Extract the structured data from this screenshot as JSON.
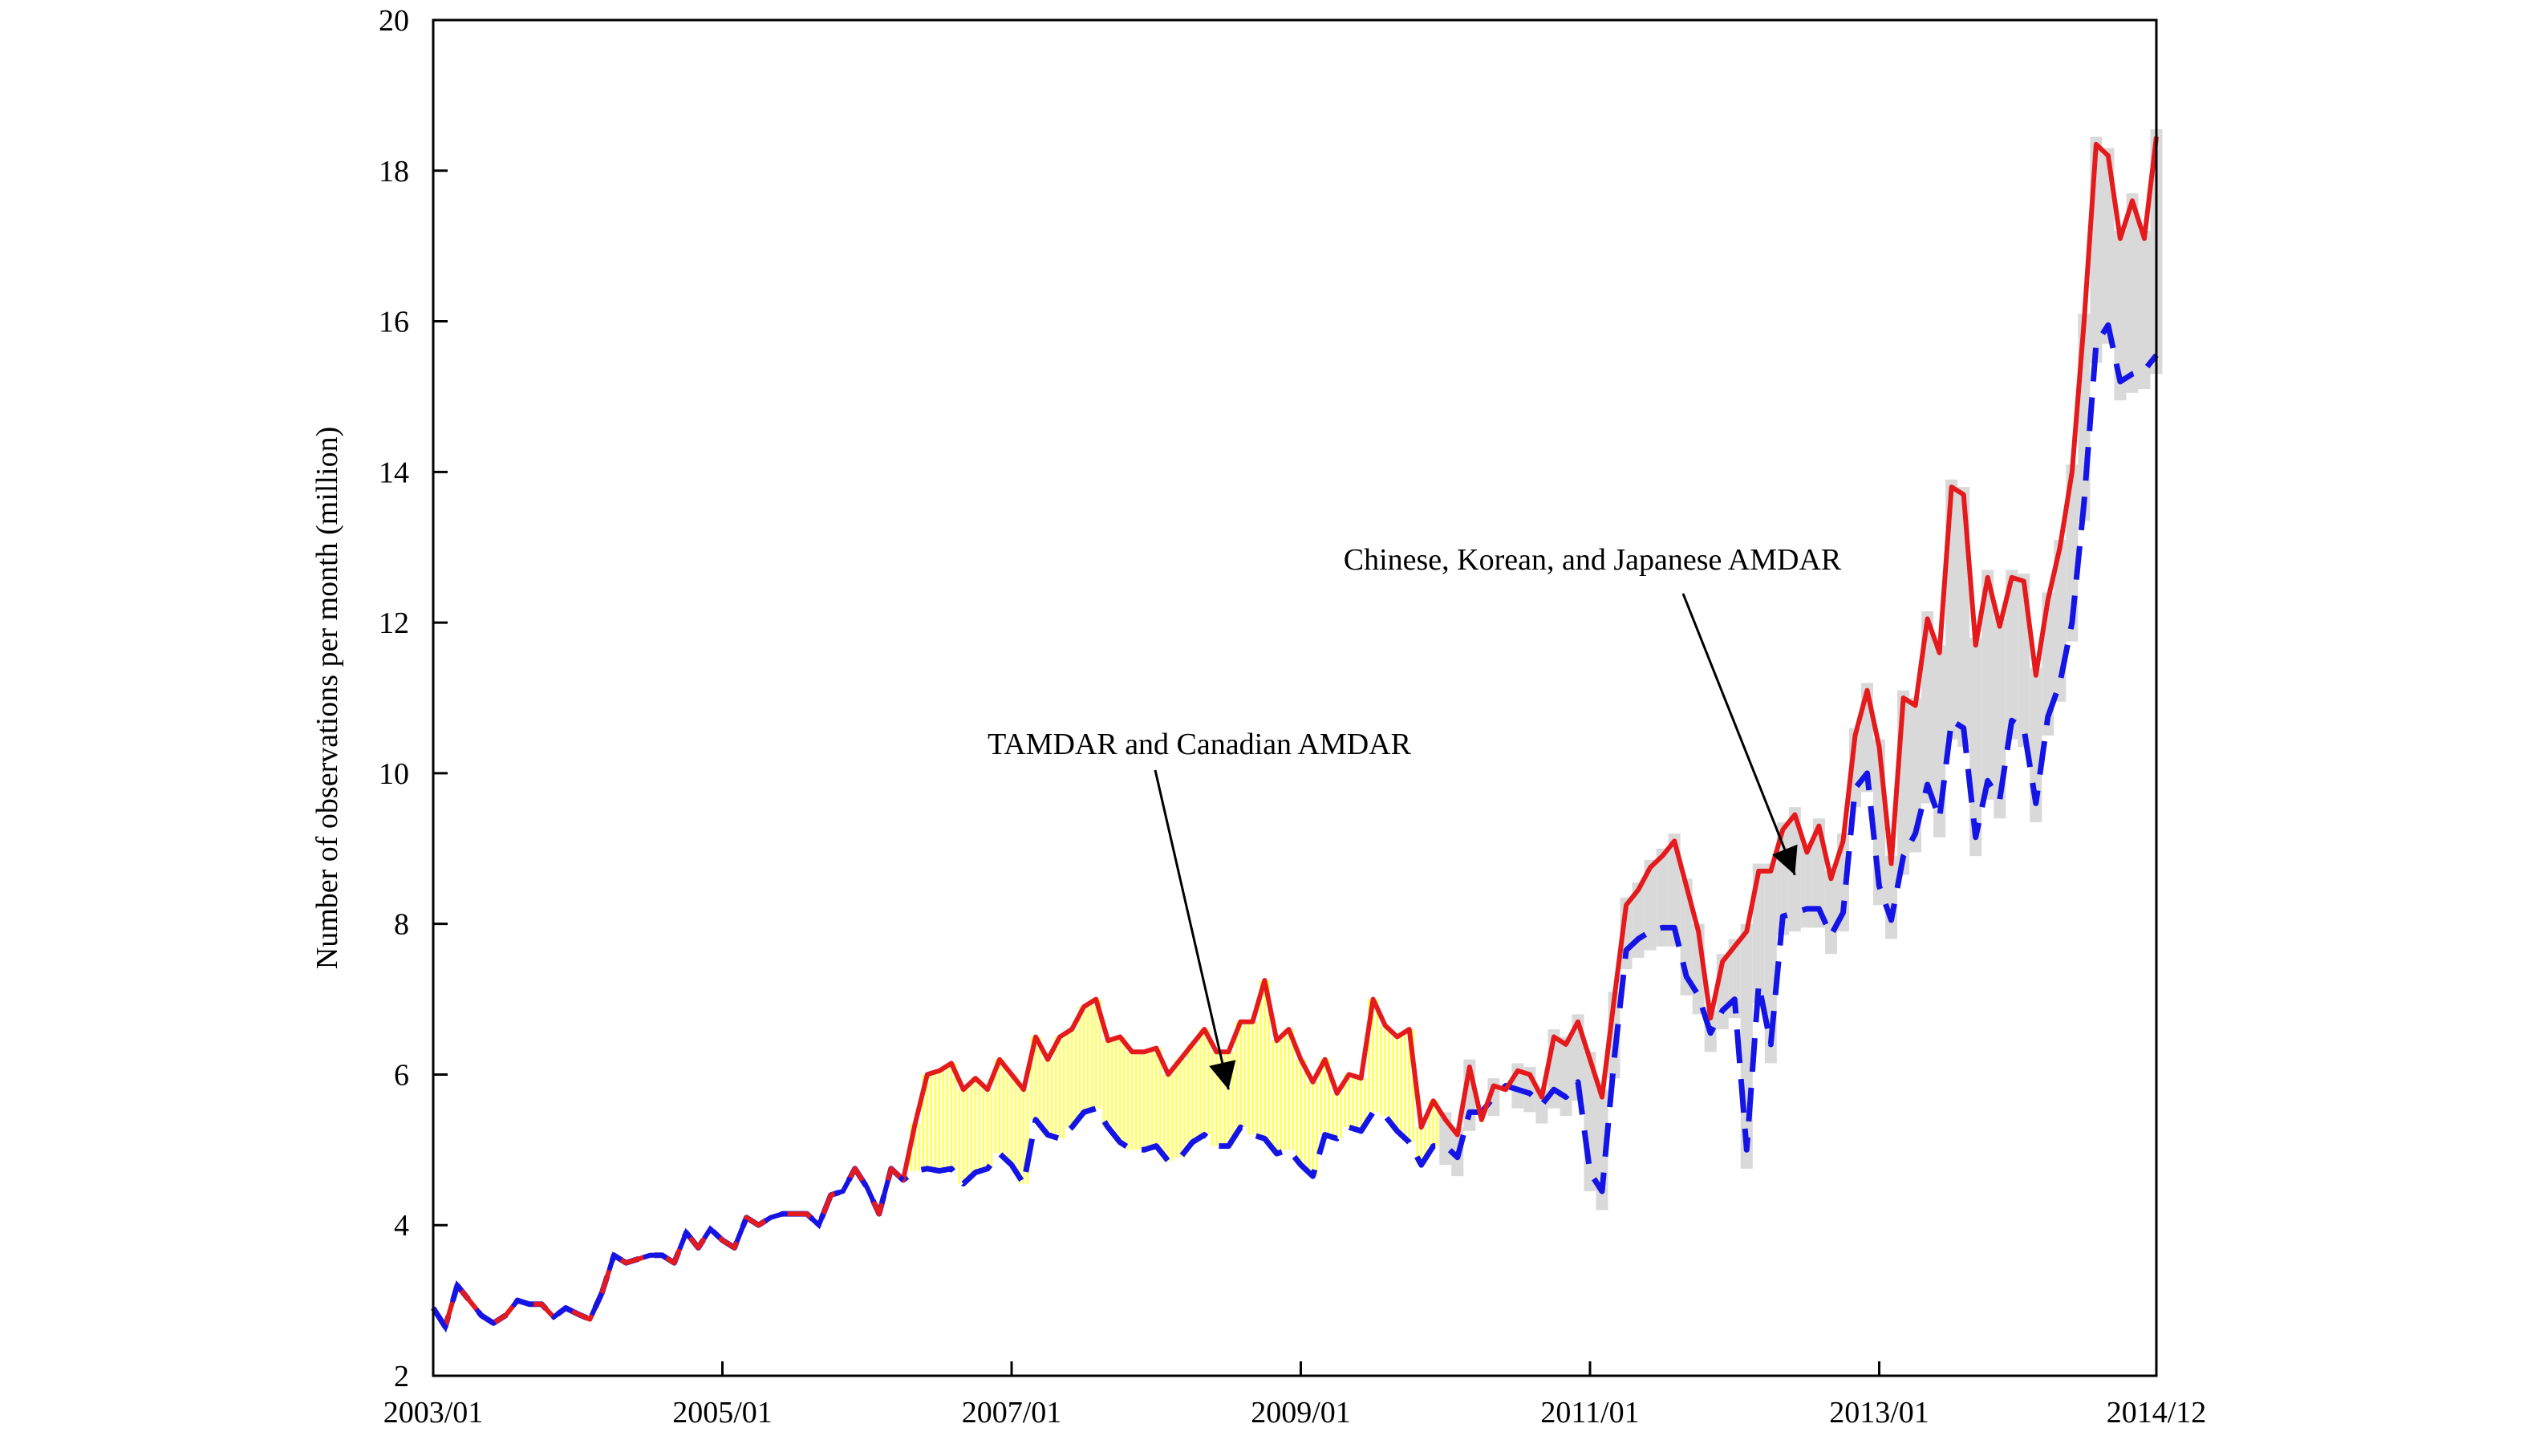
{
  "chart_data": {
    "type": "line",
    "title": "",
    "xlabel": "",
    "ylabel": "Number of observations per month (million)",
    "xlim": [
      "2003/01",
      "2014/12"
    ],
    "ylim": [
      2,
      20
    ],
    "x_ticks": [
      "2003/01",
      "2005/01",
      "2007/01",
      "2009/01",
      "2011/01",
      "2013/01",
      "2014/12"
    ],
    "y_ticks": [
      2,
      4,
      6,
      8,
      10,
      12,
      14,
      16,
      18,
      20
    ],
    "grid": false,
    "legend": "none",
    "colors": {
      "total": "#e41a1c",
      "without_new": "#1414e6",
      "tamdar_fill": "#ffff66",
      "asia_fill": "#d9d9d9"
    },
    "series": [
      {
        "points": [
          [
            "2003/01",
            2.9
          ],
          [
            "2003/02",
            2.65
          ],
          [
            "2003/03",
            3.2
          ],
          [
            "2003/04",
            3.0
          ],
          [
            "2003/05",
            2.8
          ],
          [
            "2003/06",
            2.7
          ],
          [
            "2003/07",
            2.8
          ],
          [
            "2003/08",
            3.0
          ],
          [
            "2003/09",
            2.95
          ],
          [
            "2003/10",
            2.95
          ],
          [
            "2003/11",
            2.78
          ],
          [
            "2003/12",
            2.9
          ],
          [
            "2004/01",
            2.82
          ],
          [
            "2004/02",
            2.75
          ],
          [
            "2004/03",
            3.1
          ],
          [
            "2004/04",
            3.6
          ],
          [
            "2004/05",
            3.5
          ],
          [
            "2004/06",
            3.55
          ],
          [
            "2004/07",
            3.6
          ],
          [
            "2004/08",
            3.6
          ],
          [
            "2004/09",
            3.5
          ],
          [
            "2004/10",
            3.9
          ],
          [
            "2004/11",
            3.7
          ],
          [
            "2004/12",
            3.95
          ],
          [
            "2005/01",
            3.8
          ],
          [
            "2005/02",
            3.7
          ],
          [
            "2005/03",
            4.1
          ],
          [
            "2005/04",
            4.0
          ],
          [
            "2005/05",
            4.1
          ],
          [
            "2005/06",
            4.15
          ],
          [
            "2005/07",
            4.15
          ],
          [
            "2005/08",
            4.15
          ],
          [
            "2005/09",
            4.0
          ],
          [
            "2005/10",
            4.4
          ],
          [
            "2005/11",
            4.45
          ],
          [
            "2005/12",
            4.75
          ],
          [
            "2006/01",
            4.5
          ],
          [
            "2006/02",
            4.15
          ],
          [
            "2006/03",
            4.75
          ],
          [
            "2006/04",
            4.6
          ],
          [
            "2006/05",
            5.35
          ],
          [
            "2006/06",
            6.0
          ],
          [
            "2006/07",
            6.05
          ],
          [
            "2006/08",
            6.15
          ],
          [
            "2006/09",
            5.8
          ],
          [
            "2006/10",
            5.95
          ],
          [
            "2006/11",
            5.8
          ],
          [
            "2006/12",
            6.2
          ],
          [
            "2007/01",
            6.0
          ],
          [
            "2007/02",
            5.8
          ],
          [
            "2007/03",
            6.5
          ],
          [
            "2007/04",
            6.2
          ],
          [
            "2007/05",
            6.5
          ],
          [
            "2007/06",
            6.6
          ],
          [
            "2007/07",
            6.9
          ],
          [
            "2007/08",
            7.0
          ],
          [
            "2007/09",
            6.45
          ],
          [
            "2007/10",
            6.5
          ],
          [
            "2007/11",
            6.3
          ],
          [
            "2007/12",
            6.3
          ],
          [
            "2008/01",
            6.35
          ],
          [
            "2008/02",
            6.0
          ],
          [
            "2008/03",
            6.2
          ],
          [
            "2008/04",
            6.4
          ],
          [
            "2008/05",
            6.6
          ],
          [
            "2008/06",
            6.3
          ],
          [
            "2008/07",
            6.3
          ],
          [
            "2008/08",
            6.7
          ],
          [
            "2008/09",
            6.7
          ],
          [
            "2008/10",
            7.25
          ],
          [
            "2008/11",
            6.45
          ],
          [
            "2008/12",
            6.6
          ],
          [
            "2009/01",
            6.2
          ],
          [
            "2009/02",
            5.9
          ],
          [
            "2009/03",
            6.2
          ],
          [
            "2009/04",
            5.75
          ],
          [
            "2009/05",
            6.0
          ],
          [
            "2009/06",
            5.95
          ],
          [
            "2009/07",
            7.0
          ],
          [
            "2009/08",
            6.65
          ],
          [
            "2009/09",
            6.5
          ],
          [
            "2009/10",
            6.6
          ],
          [
            "2009/11",
            5.3
          ],
          [
            "2009/12",
            5.65
          ],
          [
            "2010/01",
            5.4
          ],
          [
            "2010/02",
            5.2
          ],
          [
            "2010/03",
            6.1
          ],
          [
            "2010/04",
            5.4
          ],
          [
            "2010/05",
            5.85
          ],
          [
            "2010/06",
            5.8
          ],
          [
            "2010/07",
            6.05
          ],
          [
            "2010/08",
            6.0
          ],
          [
            "2010/09",
            5.7
          ],
          [
            "2010/10",
            6.5
          ],
          [
            "2010/11",
            6.4
          ],
          [
            "2010/12",
            6.7
          ],
          [
            "2011/01",
            6.2
          ],
          [
            "2011/02",
            5.7
          ],
          [
            "2011/03",
            7.0
          ],
          [
            "2011/04",
            8.25
          ],
          [
            "2011/05",
            8.45
          ],
          [
            "2011/06",
            8.75
          ],
          [
            "2011/07",
            8.9
          ],
          [
            "2011/08",
            9.1
          ],
          [
            "2011/09",
            8.5
          ],
          [
            "2011/10",
            7.9
          ],
          [
            "2011/11",
            6.75
          ],
          [
            "2011/12",
            7.5
          ],
          [
            "2012/01",
            7.7
          ],
          [
            "2012/02",
            7.9
          ],
          [
            "2012/03",
            8.7
          ],
          [
            "2012/04",
            8.7
          ],
          [
            "2012/05",
            9.25
          ],
          [
            "2012/06",
            9.45
          ],
          [
            "2012/07",
            8.95
          ],
          [
            "2012/08",
            9.3
          ],
          [
            "2012/09",
            8.6
          ],
          [
            "2012/10",
            9.1
          ],
          [
            "2012/11",
            10.5
          ],
          [
            "2012/12",
            11.1
          ],
          [
            "2013/01",
            10.35
          ],
          [
            "2013/02",
            8.8
          ],
          [
            "2013/03",
            11.0
          ],
          [
            "2013/04",
            10.9
          ],
          [
            "2013/05",
            12.05
          ],
          [
            "2013/06",
            11.6
          ],
          [
            "2013/07",
            13.8
          ],
          [
            "2013/08",
            13.7
          ],
          [
            "2013/09",
            11.7
          ],
          [
            "2013/10",
            12.6
          ],
          [
            "2013/11",
            11.95
          ],
          [
            "2013/12",
            12.6
          ],
          [
            "2014/01",
            12.55
          ],
          [
            "2014/02",
            11.3
          ],
          [
            "2014/03",
            12.3
          ],
          [
            "2014/04",
            13.0
          ],
          [
            "2014/05",
            14.0
          ],
          [
            "2014/06",
            16.0
          ],
          [
            "2014/07",
            18.35
          ],
          [
            "2014/08",
            18.2
          ],
          [
            "2014/09",
            17.1
          ],
          [
            "2014/10",
            17.6
          ],
          [
            "2014/11",
            17.1
          ],
          [
            "2014/12",
            18.45
          ]
        ]
      },
      {
        "points": [
          [
            "2003/01",
            2.9
          ],
          [
            "2003/02",
            2.65
          ],
          [
            "2003/03",
            3.2
          ],
          [
            "2003/04",
            3.0
          ],
          [
            "2003/05",
            2.8
          ],
          [
            "2003/06",
            2.7
          ],
          [
            "2003/07",
            2.8
          ],
          [
            "2003/08",
            3.0
          ],
          [
            "2003/09",
            2.95
          ],
          [
            "2003/10",
            2.95
          ],
          [
            "2003/11",
            2.78
          ],
          [
            "2003/12",
            2.9
          ],
          [
            "2004/01",
            2.82
          ],
          [
            "2004/02",
            2.75
          ],
          [
            "2004/03",
            3.1
          ],
          [
            "2004/04",
            3.6
          ],
          [
            "2004/05",
            3.5
          ],
          [
            "2004/06",
            3.55
          ],
          [
            "2004/07",
            3.6
          ],
          [
            "2004/08",
            3.6
          ],
          [
            "2004/09",
            3.5
          ],
          [
            "2004/10",
            3.9
          ],
          [
            "2004/11",
            3.7
          ],
          [
            "2004/12",
            3.95
          ],
          [
            "2005/01",
            3.8
          ],
          [
            "2005/02",
            3.7
          ],
          [
            "2005/03",
            4.1
          ],
          [
            "2005/04",
            4.0
          ],
          [
            "2005/05",
            4.1
          ],
          [
            "2005/06",
            4.15
          ],
          [
            "2005/07",
            4.15
          ],
          [
            "2005/08",
            4.15
          ],
          [
            "2005/09",
            4.0
          ],
          [
            "2005/10",
            4.4
          ],
          [
            "2005/11",
            4.45
          ],
          [
            "2005/12",
            4.75
          ],
          [
            "2006/01",
            4.5
          ],
          [
            "2006/02",
            4.15
          ],
          [
            "2006/03",
            4.75
          ],
          [
            "2006/04",
            4.6
          ],
          [
            "2006/05",
            4.72
          ],
          [
            "2006/06",
            4.75
          ],
          [
            "2006/07",
            4.72
          ],
          [
            "2006/08",
            4.75
          ],
          [
            "2006/09",
            4.55
          ],
          [
            "2006/10",
            4.7
          ],
          [
            "2006/11",
            4.75
          ],
          [
            "2006/12",
            4.95
          ],
          [
            "2007/01",
            4.8
          ],
          [
            "2007/02",
            4.55
          ],
          [
            "2007/03",
            5.4
          ],
          [
            "2007/04",
            5.2
          ],
          [
            "2007/05",
            5.15
          ],
          [
            "2007/06",
            5.3
          ],
          [
            "2007/07",
            5.5
          ],
          [
            "2007/08",
            5.55
          ],
          [
            "2007/09",
            5.3
          ],
          [
            "2007/10",
            5.1
          ],
          [
            "2007/11",
            5.0
          ],
          [
            "2007/12",
            5.0
          ],
          [
            "2008/01",
            5.05
          ],
          [
            "2008/02",
            4.85
          ],
          [
            "2008/03",
            4.9
          ],
          [
            "2008/04",
            5.1
          ],
          [
            "2008/05",
            5.2
          ],
          [
            "2008/06",
            5.05
          ],
          [
            "2008/07",
            5.05
          ],
          [
            "2008/08",
            5.3
          ],
          [
            "2008/09",
            5.2
          ],
          [
            "2008/10",
            5.15
          ],
          [
            "2008/11",
            4.95
          ],
          [
            "2008/12",
            5.0
          ],
          [
            "2009/01",
            4.8
          ],
          [
            "2009/02",
            4.65
          ],
          [
            "2009/03",
            5.2
          ],
          [
            "2009/04",
            5.15
          ],
          [
            "2009/05",
            5.3
          ],
          [
            "2009/06",
            5.25
          ],
          [
            "2009/07",
            5.5
          ],
          [
            "2009/08",
            5.45
          ],
          [
            "2009/09",
            5.25
          ],
          [
            "2009/10",
            5.1
          ],
          [
            "2009/11",
            4.8
          ],
          [
            "2009/12",
            5.05
          ],
          [
            "2010/01",
            5.05
          ],
          [
            "2010/02",
            4.9
          ],
          [
            "2010/03",
            5.5
          ],
          [
            "2010/04",
            5.5
          ],
          [
            "2010/05",
            5.7
          ],
          [
            "2010/06",
            5.85
          ],
          [
            "2010/07",
            5.8
          ],
          [
            "2010/08",
            5.75
          ],
          [
            "2010/09",
            5.6
          ],
          [
            "2010/10",
            5.8
          ],
          [
            "2010/11",
            5.7
          ],
          [
            "2010/12",
            5.9
          ],
          [
            "2011/01",
            4.7
          ],
          [
            "2011/02",
            4.45
          ],
          [
            "2011/03",
            6.2
          ],
          [
            "2011/04",
            7.65
          ],
          [
            "2011/05",
            7.8
          ],
          [
            "2011/06",
            7.9
          ],
          [
            "2011/07",
            7.95
          ],
          [
            "2011/08",
            7.95
          ],
          [
            "2011/09",
            7.3
          ],
          [
            "2011/10",
            7.05
          ],
          [
            "2011/11",
            6.55
          ],
          [
            "2011/12",
            6.85
          ],
          [
            "2012/01",
            7.0
          ],
          [
            "2012/02",
            5.0
          ],
          [
            "2012/03",
            7.2
          ],
          [
            "2012/04",
            6.4
          ],
          [
            "2012/05",
            8.1
          ],
          [
            "2012/06",
            8.15
          ],
          [
            "2012/07",
            8.2
          ],
          [
            "2012/08",
            8.2
          ],
          [
            "2012/09",
            7.85
          ],
          [
            "2012/10",
            8.15
          ],
          [
            "2012/11",
            9.8
          ],
          [
            "2012/12",
            10.0
          ],
          [
            "2013/01",
            8.5
          ],
          [
            "2013/02",
            8.05
          ],
          [
            "2013/03",
            8.9
          ],
          [
            "2013/04",
            9.2
          ],
          [
            "2013/05",
            9.85
          ],
          [
            "2013/06",
            9.4
          ],
          [
            "2013/07",
            10.7
          ],
          [
            "2013/08",
            10.6
          ],
          [
            "2013/09",
            9.15
          ],
          [
            "2013/10",
            9.9
          ],
          [
            "2013/11",
            9.65
          ],
          [
            "2013/12",
            10.7
          ],
          [
            "2014/01",
            10.6
          ],
          [
            "2014/02",
            9.6
          ],
          [
            "2014/03",
            10.75
          ],
          [
            "2014/04",
            11.2
          ],
          [
            "2014/05",
            12.0
          ],
          [
            "2014/06",
            13.6
          ],
          [
            "2014/07",
            15.7
          ],
          [
            "2014/08",
            15.95
          ],
          [
            "2014/09",
            15.2
          ],
          [
            "2014/10",
            15.3
          ],
          [
            "2014/11",
            15.35
          ],
          [
            "2014/12",
            15.55
          ]
        ]
      }
    ],
    "annotations": [
      {
        "text": "TAMDAR and Canadian AMDAR",
        "points_to": [
          "2008/07",
          5.8
        ]
      },
      {
        "text": "Chinese, Korean, and Japanese AMDAR",
        "points_to": [
          "2012/06",
          8.65
        ]
      }
    ]
  }
}
